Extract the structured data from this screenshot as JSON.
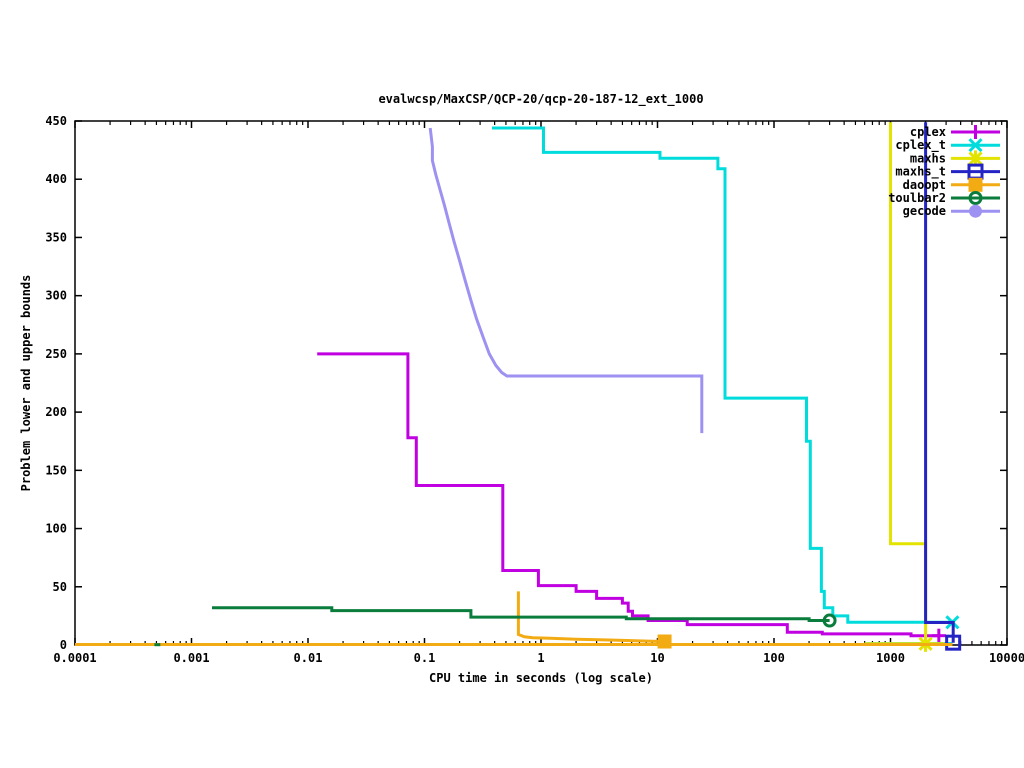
{
  "chart_data": {
    "type": "line",
    "title": "evalwcsp/MaxCSP/QCP-20/qcp-20-187-12_ext_1000",
    "xlabel": "CPU time in seconds (log scale)",
    "ylabel": "Problem lower and upper bounds",
    "x_scale": "log",
    "x_range": [
      0.0001,
      10000
    ],
    "y_range": [
      0,
      450
    ],
    "grid": false,
    "legend_position": "top-right",
    "x_ticks": [
      {
        "v": 0.0001,
        "label": "0.0001"
      },
      {
        "v": 0.001,
        "label": "0.001"
      },
      {
        "v": 0.01,
        "label": "0.01"
      },
      {
        "v": 0.1,
        "label": "0.1"
      },
      {
        "v": 1,
        "label": "1"
      },
      {
        "v": 10,
        "label": "10"
      },
      {
        "v": 100,
        "label": "100"
      },
      {
        "v": 1000,
        "label": "1000"
      },
      {
        "v": 10000,
        "label": "10000"
      }
    ],
    "y_ticks": [
      {
        "v": 0,
        "label": "0"
      },
      {
        "v": 50,
        "label": "50"
      },
      {
        "v": 100,
        "label": "100"
      },
      {
        "v": 150,
        "label": "150"
      },
      {
        "v": 200,
        "label": "200"
      },
      {
        "v": 250,
        "label": "250"
      },
      {
        "v": 300,
        "label": "300"
      },
      {
        "v": 350,
        "label": "350"
      },
      {
        "v": 400,
        "label": "400"
      },
      {
        "v": 450,
        "label": "450"
      }
    ],
    "series": [
      {
        "name": "cplex",
        "color": "#c000e0",
        "marker": "plus",
        "segments": [
          [
            [
              0.012,
              250
            ],
            [
              0.072,
              250
            ],
            [
              0.072,
              178
            ],
            [
              0.085,
              178
            ],
            [
              0.085,
              137
            ],
            [
              0.47,
              137
            ],
            [
              0.47,
              64
            ],
            [
              0.95,
              64
            ],
            [
              0.95,
              51
            ],
            [
              2.0,
              51
            ],
            [
              2.0,
              46
            ],
            [
              3.0,
              46
            ],
            [
              3.0,
              40
            ],
            [
              5.0,
              40
            ],
            [
              5.0,
              36
            ],
            [
              5.6,
              36
            ],
            [
              5.6,
              29
            ],
            [
              6.1,
              29
            ],
            [
              6.1,
              25
            ],
            [
              8.3,
              25
            ],
            [
              8.3,
              21
            ],
            [
              18,
              21
            ],
            [
              18,
              17.5
            ],
            [
              130,
              17.5
            ],
            [
              130,
              11
            ],
            [
              260,
              11
            ],
            [
              260,
              9.5
            ],
            [
              1500,
              9.5
            ],
            [
              1500,
              8
            ],
            [
              2600,
              8
            ]
          ]
        ],
        "marker_points": [
          [
            2600,
            8
          ]
        ]
      },
      {
        "name": "cplex_t",
        "color": "#00dcdc",
        "marker": "cross",
        "segments": [
          [
            [
              0.38,
              444
            ],
            [
              1.05,
              444
            ],
            [
              1.05,
              423
            ],
            [
              10.5,
              423
            ],
            [
              10.5,
              418
            ],
            [
              33,
              418
            ],
            [
              33,
              409
            ],
            [
              38,
              409
            ],
            [
              38,
              212
            ],
            [
              190,
              212
            ],
            [
              190,
              175
            ],
            [
              205,
              175
            ],
            [
              205,
              83
            ],
            [
              255,
              83
            ],
            [
              255,
              46
            ],
            [
              270,
              46
            ],
            [
              270,
              32
            ],
            [
              320,
              32
            ],
            [
              320,
              25
            ],
            [
              430,
              25
            ],
            [
              430,
              19.5
            ],
            [
              3400,
              19.5
            ]
          ],
          [
            [
              600,
              1.2
            ],
            [
              3400,
              1.2
            ]
          ]
        ],
        "marker_points": [
          [
            3400,
            19.5
          ]
        ]
      },
      {
        "name": "maxhs",
        "color": "#e3e300",
        "marker": "star",
        "segments": [
          [
            [
              1000,
              449
            ],
            [
              1000,
              87
            ],
            [
              2000,
              87
            ],
            [
              2000,
              1
            ]
          ],
          [
            [
              600,
              1
            ],
            [
              2900,
              1
            ]
          ]
        ],
        "marker_points": [
          [
            2000,
            1
          ]
        ]
      },
      {
        "name": "maxhs_t",
        "color": "#2424c4",
        "marker": "square-open",
        "segments": [
          [
            [
              2000,
              449
            ],
            [
              2000,
              19.3
            ],
            [
              3450,
              19.3
            ],
            [
              3450,
              2
            ]
          ]
        ],
        "marker_points": [
          [
            3450,
            2
          ]
        ]
      },
      {
        "name": "daoopt",
        "color": "#f3ab14",
        "marker": "square-filled",
        "segments": [
          [
            [
              0.64,
              46
            ],
            [
              0.64,
              9
            ],
            [
              0.72,
              7
            ],
            [
              0.85,
              6.3
            ],
            [
              1.2,
              5.8
            ],
            [
              2,
              5
            ],
            [
              3.5,
              4.4
            ],
            [
              6,
              3.8
            ],
            [
              9,
              3.3
            ],
            [
              11.5,
              3
            ]
          ],
          [
            [
              0.0001,
              0.4
            ],
            [
              3400,
              0.4
            ]
          ]
        ],
        "marker_points": [
          [
            11.5,
            3
          ]
        ]
      },
      {
        "name": "toulbar2",
        "color": "#0a7d3c",
        "marker": "circle-open",
        "segments": [
          [
            [
              0.0015,
              32
            ],
            [
              0.016,
              32
            ],
            [
              0.016,
              29.5
            ],
            [
              0.25,
              29.5
            ],
            [
              0.25,
              24
            ],
            [
              5.4,
              24
            ],
            [
              5.4,
              22.5
            ],
            [
              200,
              22.5
            ],
            [
              200,
              21
            ],
            [
              300,
              21
            ]
          ],
          [
            [
              0.00048,
              0.3
            ],
            [
              0.00054,
              0.3
            ]
          ]
        ],
        "marker_points": [
          [
            300,
            21
          ]
        ]
      },
      {
        "name": "gecode",
        "color": "#9d92f2",
        "marker": "circle-filled",
        "segments": [
          [
            [
              0.112,
              444
            ],
            [
              0.117,
              428
            ],
            [
              0.117,
              416
            ],
            [
              0.125,
              404
            ],
            [
              0.135,
              392
            ],
            [
              0.148,
              378
            ],
            [
              0.163,
              362
            ],
            [
              0.18,
              346
            ],
            [
              0.2,
              330
            ],
            [
              0.225,
              312
            ],
            [
              0.25,
              296
            ],
            [
              0.28,
              280
            ],
            [
              0.32,
              264
            ],
            [
              0.36,
              250
            ],
            [
              0.41,
              240
            ],
            [
              0.46,
              234
            ],
            [
              0.51,
              231
            ],
            [
              24,
              231
            ],
            [
              24,
              182
            ]
          ]
        ],
        "marker_points": []
      }
    ]
  }
}
